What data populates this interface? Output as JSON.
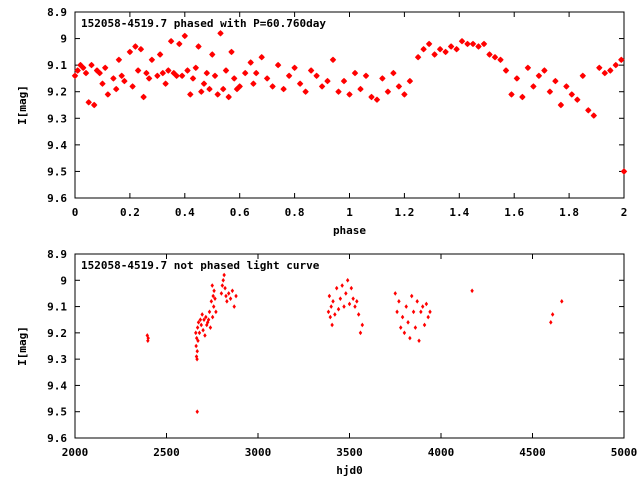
{
  "colors": {
    "points": "#ff0000",
    "axis": "#000000",
    "background": "#ffffff"
  },
  "chart_data": [
    {
      "type": "scatter",
      "title": "152058-4519.7 phased with P=60.760day",
      "xlabel": "phase",
      "ylabel": "I[mag]",
      "xlim": [
        0,
        2
      ],
      "ylim": [
        8.9,
        9.6
      ],
      "y_inverted": true,
      "xticks": [
        0,
        0.2,
        0.4,
        0.6,
        0.8,
        1,
        1.2,
        1.4,
        1.6,
        1.8,
        2
      ],
      "xtick_labels": [
        "0",
        "0.2",
        "0.4",
        "0.6",
        "0.8",
        "1",
        "1.2",
        "1.4",
        "1.6",
        "1.8",
        "2"
      ],
      "yticks": [
        8.9,
        9.0,
        9.1,
        9.2,
        9.3,
        9.4,
        9.5,
        9.6
      ],
      "ytick_labels": [
        "8.9",
        "9",
        "9.1",
        "9.2",
        "9.3",
        "9.4",
        "9.5",
        "9.6"
      ],
      "grid": false,
      "legend_position": "top-left",
      "marker": "star",
      "x": [
        0.0,
        0.01,
        0.02,
        0.03,
        0.04,
        0.05,
        0.06,
        0.07,
        0.08,
        0.09,
        0.1,
        0.11,
        0.12,
        0.14,
        0.15,
        0.16,
        0.17,
        0.18,
        0.2,
        0.21,
        0.22,
        0.23,
        0.24,
        0.25,
        0.26,
        0.27,
        0.28,
        0.3,
        0.31,
        0.32,
        0.33,
        0.34,
        0.35,
        0.36,
        0.37,
        0.38,
        0.39,
        0.4,
        0.41,
        0.42,
        0.43,
        0.44,
        0.45,
        0.46,
        0.47,
        0.48,
        0.49,
        0.5,
        0.51,
        0.52,
        0.53,
        0.54,
        0.55,
        0.56,
        0.57,
        0.58,
        0.59,
        0.6,
        0.62,
        0.64,
        0.65,
        0.66,
        0.68,
        0.7,
        0.72,
        0.74,
        0.76,
        0.78,
        0.8,
        0.82,
        0.84,
        0.86,
        0.88,
        0.9,
        0.92,
        0.94,
        0.96,
        0.98,
        1.0,
        1.02,
        1.04,
        1.06,
        1.08,
        1.1,
        1.12,
        1.14,
        1.16,
        1.18,
        1.2,
        1.22,
        1.25,
        1.27,
        1.29,
        1.31,
        1.33,
        1.35,
        1.37,
        1.39,
        1.41,
        1.43,
        1.45,
        1.47,
        1.49,
        1.51,
        1.53,
        1.55,
        1.57,
        1.59,
        1.61,
        1.63,
        1.65,
        1.67,
        1.69,
        1.71,
        1.73,
        1.75,
        1.77,
        1.79,
        1.81,
        1.83,
        1.85,
        1.87,
        1.89,
        1.91,
        1.93,
        1.95,
        1.97,
        1.99,
        2.0
      ],
      "y": [
        9.14,
        9.12,
        9.1,
        9.11,
        9.13,
        9.24,
        9.1,
        9.25,
        9.12,
        9.13,
        9.17,
        9.11,
        9.21,
        9.15,
        9.19,
        9.08,
        9.14,
        9.16,
        9.05,
        9.18,
        9.03,
        9.12,
        9.04,
        9.22,
        9.13,
        9.15,
        9.08,
        9.14,
        9.06,
        9.13,
        9.17,
        9.12,
        9.01,
        9.13,
        9.14,
        9.02,
        9.14,
        8.99,
        9.12,
        9.21,
        9.15,
        9.11,
        9.03,
        9.2,
        9.17,
        9.13,
        9.19,
        9.06,
        9.14,
        9.21,
        8.98,
        9.19,
        9.12,
        9.22,
        9.05,
        9.15,
        9.19,
        9.18,
        9.13,
        9.09,
        9.17,
        9.13,
        9.07,
        9.15,
        9.18,
        9.1,
        9.19,
        9.14,
        9.11,
        9.17,
        9.2,
        9.12,
        9.14,
        9.18,
        9.16,
        9.08,
        9.2,
        9.16,
        9.21,
        9.13,
        9.19,
        9.14,
        9.22,
        9.23,
        9.15,
        9.2,
        9.13,
        9.18,
        9.21,
        9.16,
        9.07,
        9.04,
        9.02,
        9.06,
        9.04,
        9.05,
        9.03,
        9.04,
        9.01,
        9.02,
        9.02,
        9.03,
        9.02,
        9.06,
        9.07,
        9.08,
        9.12,
        9.21,
        9.15,
        9.22,
        9.11,
        9.18,
        9.14,
        9.12,
        9.2,
        9.16,
        9.25,
        9.18,
        9.21,
        9.23,
        9.14,
        9.27,
        9.29,
        9.11,
        9.13,
        9.12,
        9.1,
        9.08,
        9.5
      ]
    },
    {
      "type": "scatter",
      "title": "152058-4519.7 not phased light curve",
      "xlabel": "hjd0",
      "ylabel": "I[mag]",
      "xlim": [
        2000,
        5000
      ],
      "ylim": [
        8.9,
        9.6
      ],
      "y_inverted": true,
      "xticks": [
        2000,
        2500,
        3000,
        3500,
        4000,
        4500,
        5000
      ],
      "xtick_labels": [
        "2000",
        "2500",
        "3000",
        "3500",
        "4000",
        "4500",
        "5000"
      ],
      "yticks": [
        8.9,
        9.0,
        9.1,
        9.2,
        9.3,
        9.4,
        9.5,
        9.6
      ],
      "ytick_labels": [
        "8.9",
        "9",
        "9.1",
        "9.2",
        "9.3",
        "9.4",
        "9.5",
        "9.6"
      ],
      "grid": false,
      "legend_position": "top-left",
      "marker": "diamond",
      "x": [
        2395,
        2398,
        2400,
        2660,
        2662,
        2664,
        2665,
        2667,
        2668,
        2670,
        2672,
        2675,
        2680,
        2685,
        2690,
        2695,
        2700,
        2705,
        2710,
        2715,
        2720,
        2725,
        2730,
        2735,
        2740,
        2745,
        2750,
        2752,
        2755,
        2758,
        2760,
        2765,
        2770,
        2800,
        2805,
        2810,
        2815,
        2820,
        2825,
        2830,
        2840,
        2850,
        2860,
        2870,
        2880,
        3385,
        3390,
        3395,
        3400,
        3405,
        3410,
        3420,
        3430,
        3440,
        3450,
        3460,
        3470,
        3480,
        3490,
        3500,
        3510,
        3520,
        3530,
        3540,
        3550,
        3560,
        3570,
        3750,
        3760,
        3770,
        3780,
        3790,
        3800,
        3810,
        3820,
        3830,
        3840,
        3850,
        3860,
        3870,
        3880,
        3890,
        3900,
        3910,
        3920,
        3930,
        3940,
        4170,
        4600,
        4610,
        4660,
        2668
      ],
      "y": [
        9.21,
        9.23,
        9.22,
        9.2,
        9.25,
        9.29,
        9.22,
        9.3,
        9.27,
        9.18,
        9.23,
        9.16,
        9.2,
        9.15,
        9.17,
        9.13,
        9.19,
        9.15,
        9.21,
        9.14,
        9.17,
        9.16,
        9.15,
        9.12,
        9.18,
        9.08,
        9.02,
        9.14,
        9.06,
        9.1,
        9.04,
        9.07,
        9.12,
        9.05,
        9.02,
        9.0,
        8.98,
        9.03,
        9.06,
        9.08,
        9.05,
        9.07,
        9.04,
        9.1,
        9.06,
        9.12,
        9.06,
        9.14,
        9.1,
        9.17,
        9.08,
        9.13,
        9.03,
        9.11,
        9.07,
        9.02,
        9.1,
        9.05,
        9.0,
        9.09,
        9.03,
        9.07,
        9.1,
        9.08,
        9.13,
        9.2,
        9.17,
        9.05,
        9.12,
        9.08,
        9.18,
        9.14,
        9.2,
        9.1,
        9.16,
        9.22,
        9.06,
        9.12,
        9.18,
        9.08,
        9.23,
        9.12,
        9.1,
        9.17,
        9.09,
        9.14,
        9.12,
        9.04,
        9.16,
        9.13,
        9.08,
        9.5
      ]
    }
  ]
}
